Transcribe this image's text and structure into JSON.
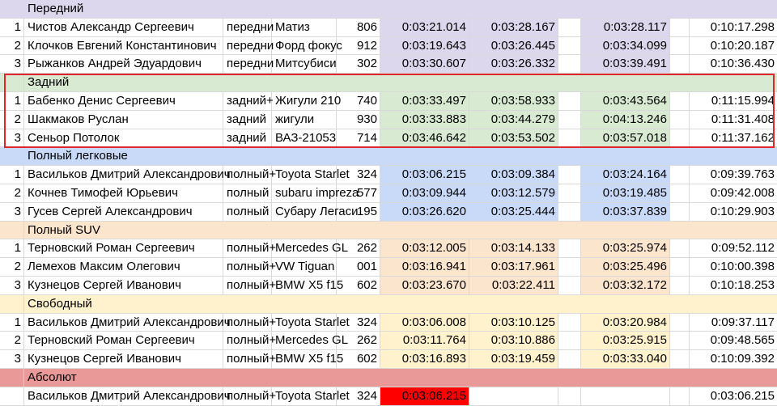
{
  "colors": {
    "front": "#ddd7ed",
    "rear": "#d9ead3",
    "awd": "#c9daf8",
    "suv": "#fce5cd",
    "free": "#fff2cc",
    "absolute": "#ea9999",
    "best_absolute": "#ff0000",
    "border": "#d9d9d9",
    "frame": "#e0262b"
  },
  "sections": [
    {
      "key": "front",
      "title": "Передний",
      "rows": [
        {
          "num": "1",
          "name": "Чистов Александр Сергеевич",
          "drive": "передни",
          "car": "Матиз",
          "number": "806",
          "t1": "0:03:21.014",
          "t2": "0:03:28.167",
          "t3": "0:03:28.117",
          "total": "0:10:17.298"
        },
        {
          "num": "2",
          "name": "Клочков Евгений Константинович",
          "drive": "передни",
          "car": "Форд фокус",
          "number": "912",
          "t1": "0:03:19.643",
          "t2": "0:03:26.445",
          "t3": "0:03:34.099",
          "total": "0:10:20.187"
        },
        {
          "num": "3",
          "name": "Рыжанков Андрей Эдуардович",
          "drive": "передни",
          "car": "Митсубиси",
          "number": "302",
          "t1": "0:03:30.607",
          "t2": "0:03:26.332",
          "t3": "0:03:39.491",
          "total": "0:10:36.430"
        }
      ]
    },
    {
      "key": "rear",
      "title": "Задний",
      "rows": [
        {
          "num": "1",
          "name": "Бабенко Денис Сергеевич",
          "drive": "задний+",
          "car": "Жигули 210",
          "number": "740",
          "t1": "0:03:33.497",
          "t2": "0:03:58.933",
          "t3": "0:03:43.564",
          "total": "0:11:15.994"
        },
        {
          "num": "2",
          "name": "Шакмаков Руслан",
          "drive": "задний",
          "car": "жигули",
          "number": "930",
          "t1": "0:03:33.883",
          "t2": "0:03:44.279",
          "t3": "0:04:13.246",
          "total": "0:11:31.408"
        },
        {
          "num": "3",
          "name": "Сеньор Потолок",
          "drive": "задний",
          "car": "ВАЗ-21053",
          "number": "714",
          "t1": "0:03:46.642",
          "t2": "0:03:53.502",
          "t3": "0:03:57.018",
          "total": "0:11:37.162"
        }
      ]
    },
    {
      "key": "awd",
      "title": "Полный легковые",
      "rows": [
        {
          "num": "1",
          "name": "Васильков Дмитрий Александрович",
          "drive": "полный+",
          "car": "Toyota Starlet",
          "number": "324",
          "t1": "0:03:06.215",
          "t2": "0:03:09.384",
          "t3": "0:03:24.164",
          "total": "0:09:39.763"
        },
        {
          "num": "2",
          "name": "Кочнев Тимофей Юрьевич",
          "drive": "полный",
          "car": "subaru impreza",
          "number": "577",
          "t1": "0:03:09.944",
          "t2": "0:03:12.579",
          "t3": "0:03:19.485",
          "total": "0:09:42.008"
        },
        {
          "num": "3",
          "name": "Гусев Сергей Александрович",
          "drive": "полный",
          "car": "Субару Легаси",
          "number": "195",
          "t1": "0:03:26.620",
          "t2": "0:03:25.444",
          "t3": "0:03:37.839",
          "total": "0:10:29.903"
        }
      ]
    },
    {
      "key": "suv",
      "title": "Полный SUV",
      "rows": [
        {
          "num": "1",
          "name": "Терновский Роман Сергеевич",
          "drive": "полный+",
          "car": "Mercedes GL",
          "number": "262",
          "t1": "0:03:12.005",
          "t2": "0:03:14.133",
          "t3": "0:03:25.974",
          "total": "0:09:52.112"
        },
        {
          "num": "2",
          "name": "Лемехов Максим Олегович",
          "drive": "полный+",
          "car": "VW Tiguan",
          "number": "001",
          "t1": "0:03:16.941",
          "t2": "0:03:17.961",
          "t3": "0:03:25.496",
          "total": "0:10:00.398"
        },
        {
          "num": "3",
          "name": "Кузнецов Сергей Иванович",
          "drive": "полный+",
          "car": "BMW X5 f15",
          "number": "602",
          "t1": "0:03:23.670",
          "t2": "0:03:22.411",
          "t3": "0:03:32.172",
          "total": "0:10:18.253"
        }
      ]
    },
    {
      "key": "free",
      "title": "Свободный",
      "rows": [
        {
          "num": "1",
          "name": "Васильков Дмитрий Александрович",
          "drive": "полный+",
          "car": "Toyota Starlet",
          "number": "324",
          "t1": "0:03:06.008",
          "t2": "0:03:10.125",
          "t3": "0:03:20.984",
          "total": "0:09:37.117"
        },
        {
          "num": "2",
          "name": "Терновский Роман Сергеевич",
          "drive": "полный+",
          "car": "Mercedes GL",
          "number": "262",
          "t1": "0:03:11.764",
          "t2": "0:03:10.886",
          "t3": "0:03:25.915",
          "total": "0:09:48.565"
        },
        {
          "num": "3",
          "name": "Кузнецов Сергей Иванович",
          "drive": "полный+",
          "car": "BMW X5 f15",
          "number": "602",
          "t1": "0:03:16.893",
          "t2": "0:03:19.459",
          "t3": "0:03:33.040",
          "total": "0:10:09.392"
        }
      ]
    },
    {
      "key": "absolute",
      "title": "Абсолют",
      "rows": [
        {
          "num": "",
          "name": "Васильков Дмитрий Александрович",
          "drive": "полный+",
          "car": "Toyota Starlet",
          "number": "324",
          "t1": "0:03:06.215",
          "t2": "",
          "t3": "",
          "total": "0:03:06.215"
        }
      ]
    }
  ]
}
